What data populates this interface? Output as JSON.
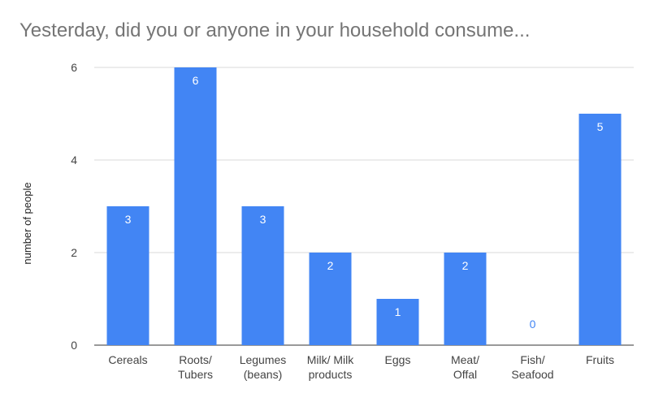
{
  "chart_data": {
    "type": "bar",
    "title": "Yesterday, did you or anyone in your household consume...",
    "xlabel": "",
    "ylabel": "number of people",
    "categories": [
      "Cereals",
      "Roots/\nTubers",
      "Legumes\n(beans)",
      "Milk/ Milk\nproducts",
      "Eggs",
      "Meat/\nOffal",
      "Fish/\nSeafood",
      "Fruits"
    ],
    "values": [
      3,
      6,
      3,
      2,
      1,
      2,
      0,
      5
    ],
    "ylim": [
      0,
      6
    ],
    "yticks": [
      0,
      2,
      4,
      6
    ],
    "grid": true,
    "legend": "none",
    "bar_color": "#4285f4",
    "label_color_inside": "#ffffff",
    "label_color_outside": "#4285f4"
  }
}
